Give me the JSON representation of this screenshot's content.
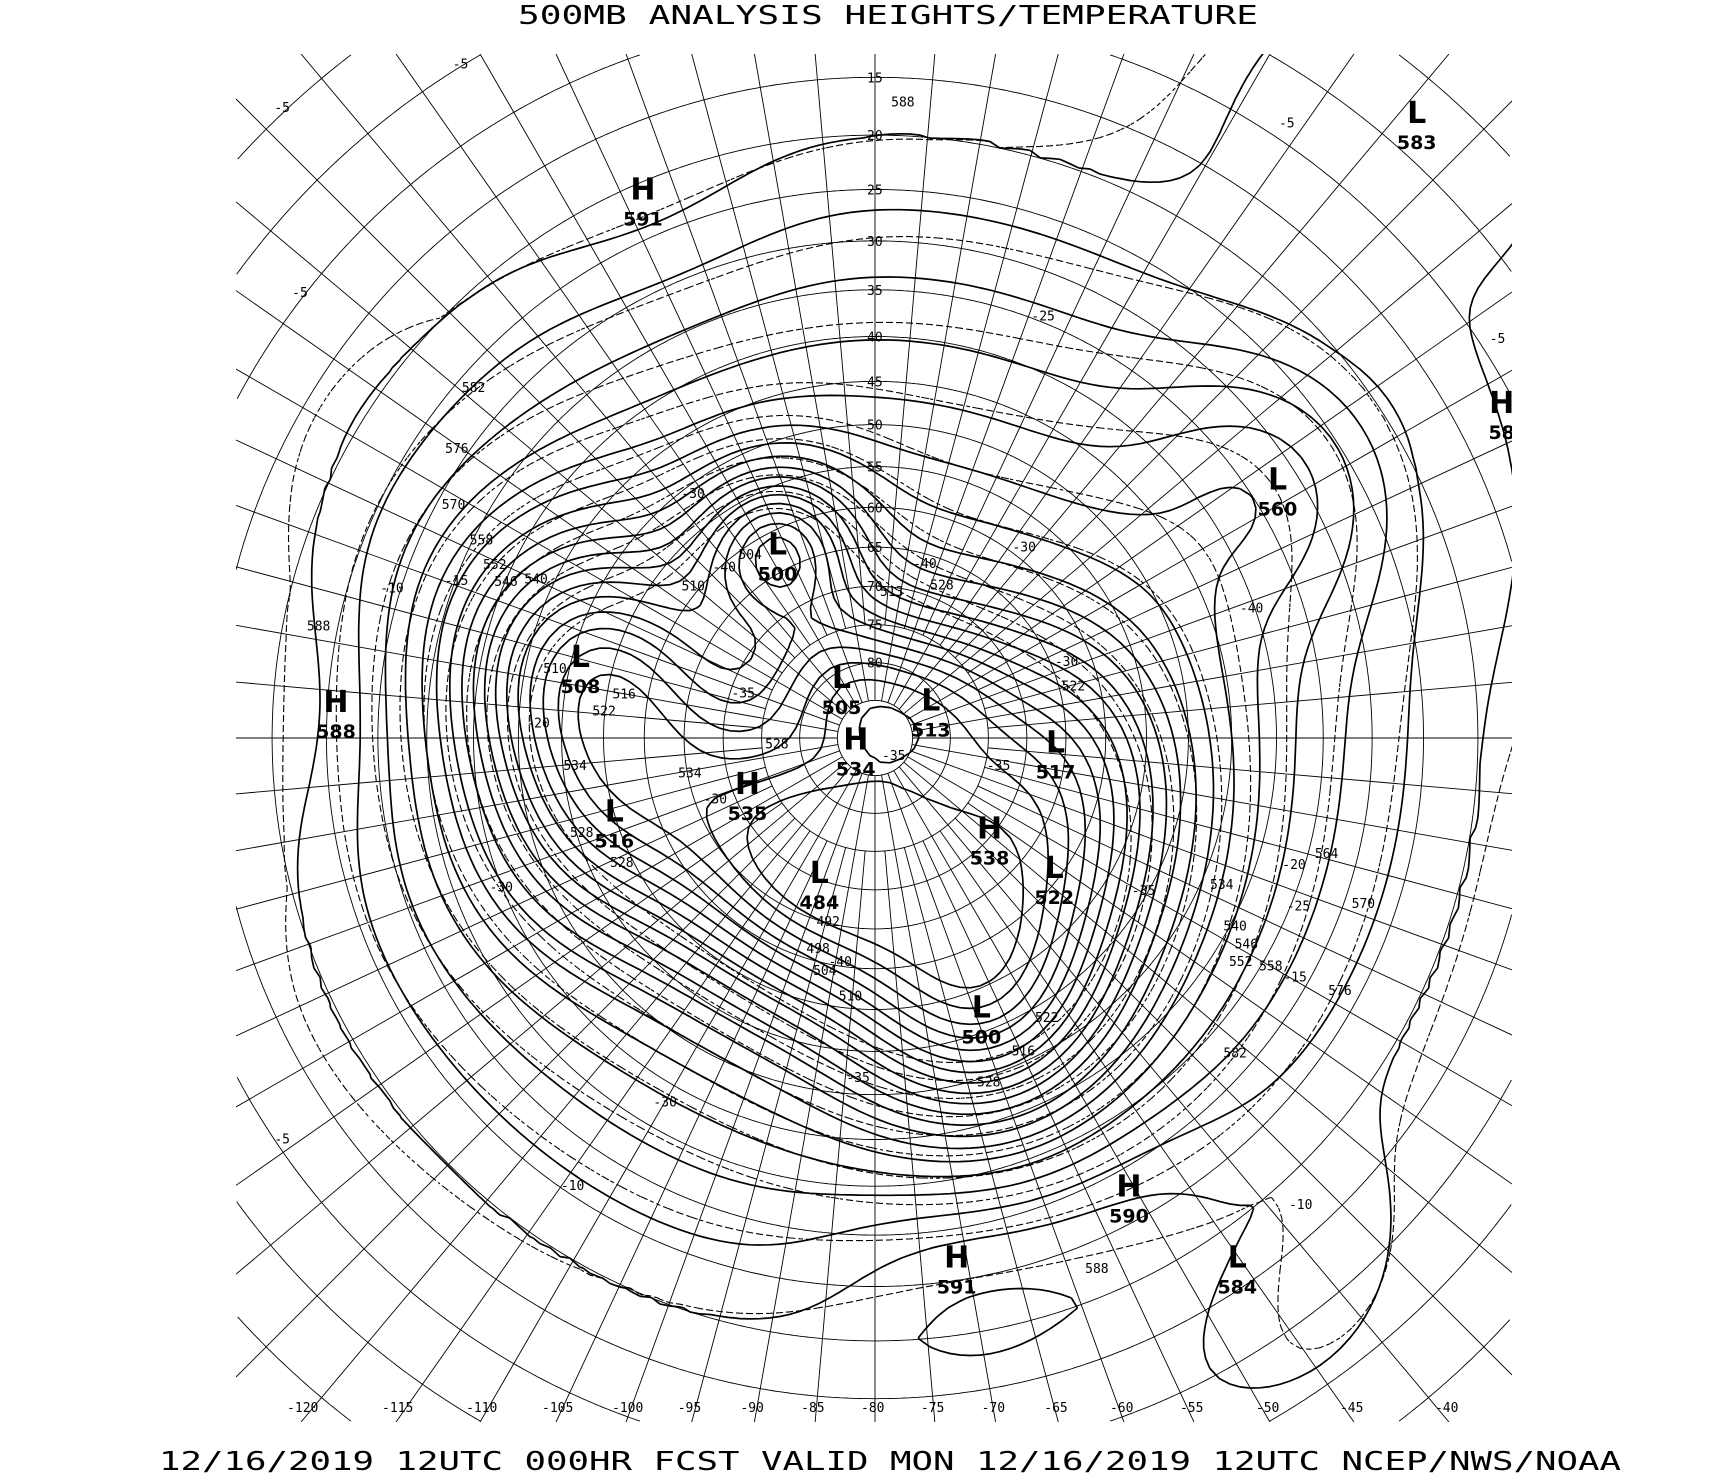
{
  "title": "500MB ANALYSIS  HEIGHTS/TEMPERATURE",
  "footer": "12/16/2019 12UTC 000HR FCST VALID MON 12/16/2019 12UTC  NCEP/NWS/NOAA",
  "map": {
    "projection": "polar stereographic",
    "height_contour_interval_dam": 6,
    "temperature_contour_interval_c": 5,
    "latitude_labels": [
      "15",
      "20",
      "25",
      "30",
      "35",
      "40",
      "45",
      "50",
      "55",
      "60",
      "65",
      "70",
      "75",
      "80"
    ],
    "longitude_labels": [
      "-120",
      "-115",
      "-110",
      "-105",
      "-100",
      "-95",
      "-90",
      "-85",
      "-80",
      "-75",
      "-70",
      "-65",
      "-60",
      "-55",
      "-50",
      "-45",
      "-40"
    ],
    "pressure_centers": [
      {
        "type": "H",
        "value": "591",
        "lat": 20.8,
        "lon": 123
      },
      {
        "type": "L",
        "value": "583",
        "lat": 2.4,
        "lon": 59
      },
      {
        "type": "H",
        "value": "58",
        "lat": 11,
        "lon": 38
      },
      {
        "type": "L",
        "value": "560",
        "lat": 32,
        "lon": 42.5
      },
      {
        "type": "L",
        "value": "500",
        "lat": 62,
        "lon": 127
      },
      {
        "type": "L",
        "value": "508",
        "lat": 51,
        "lon": 175
      },
      {
        "type": "H",
        "value": "588",
        "lat": 25.8,
        "lon": -173.6
      },
      {
        "type": "L",
        "value": "505",
        "lat": 81.1,
        "lon": 130
      },
      {
        "type": "L",
        "value": "513",
        "lat": 81.2,
        "lon": 42.6
      },
      {
        "type": "H",
        "value": "534",
        "lat": 87.4,
        "lon": -160
      },
      {
        "type": "L",
        "value": "517",
        "lat": 66.3,
        "lon": 7.9
      },
      {
        "type": "L",
        "value": "516",
        "lat": 55,
        "lon": -153.8
      },
      {
        "type": "H",
        "value": "535",
        "lat": 72,
        "lon": -149.3
      },
      {
        "type": "L",
        "value": "484",
        "lat": 70.5,
        "lon": -102.1
      },
      {
        "type": "H",
        "value": "538",
        "lat": 70.6,
        "lon": -28.9
      },
      {
        "type": "L",
        "value": "522",
        "lat": 61,
        "lon": -26.4
      },
      {
        "type": "L",
        "value": "500",
        "lat": 52.6,
        "lon": -58.6
      },
      {
        "type": "H",
        "value": "590",
        "lat": 28,
        "lon": -50.6
      },
      {
        "type": "H",
        "value": "591",
        "lat": 27,
        "lon": -71.1
      },
      {
        "type": "L",
        "value": "584",
        "lat": 17.2,
        "lon": -45.2
      }
    ],
    "height_labels": [
      "582",
      "576",
      "570",
      "558",
      "552",
      "546",
      "540",
      "588",
      "588",
      "510",
      "522",
      "534",
      "528",
      "534",
      "528",
      "510",
      "504",
      "513",
      "528",
      "522",
      "534",
      "564",
      "570",
      "540",
      "546",
      "552",
      "558",
      "576",
      "582",
      "588",
      "510",
      "504",
      "498",
      "492",
      "516",
      "522",
      "528",
      "516",
      "528"
    ],
    "temperature_labels": [
      "-5",
      "-5",
      "-5",
      "-5",
      "-5",
      "-10",
      "-10",
      "-10",
      "-15",
      "-20",
      "-20",
      "-25",
      "-30",
      "-30",
      "-30",
      "-30",
      "-30",
      "-35",
      "-35",
      "-35",
      "-35",
      "-35",
      "-40",
      "-40",
      "-40",
      "-40",
      "-25",
      "-30",
      "-15",
      "-5"
    ]
  }
}
